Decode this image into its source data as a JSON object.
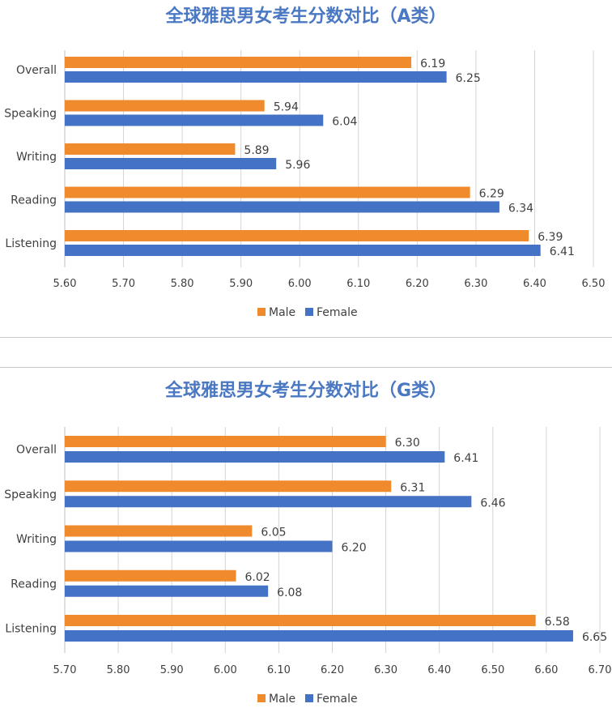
{
  "chart_data": [
    {
      "type": "bar",
      "orientation": "horizontal",
      "title": "全球雅思男女考生分数对比（A类）",
      "categories": [
        "Overall",
        "Speaking",
        "Writing",
        "Reading",
        "Listening"
      ],
      "series": [
        {
          "name": "Male",
          "color": "#ef8a2d",
          "values": [
            6.19,
            5.94,
            5.89,
            6.29,
            6.39
          ]
        },
        {
          "name": "Female",
          "color": "#4472c4",
          "values": [
            6.25,
            6.04,
            5.96,
            6.34,
            6.41
          ]
        }
      ],
      "x_ticks": [
        "5.60",
        "5.70",
        "5.80",
        "5.90",
        "6.00",
        "6.10",
        "6.20",
        "6.30",
        "6.40",
        "6.50"
      ],
      "xlim": [
        5.6,
        6.5
      ],
      "legend_position": "bottom",
      "grid": true
    },
    {
      "type": "bar",
      "orientation": "horizontal",
      "title": "全球雅思男女考生分数对比（G类）",
      "categories": [
        "Overall",
        "Speaking",
        "Writing",
        "Reading",
        "Listening"
      ],
      "series": [
        {
          "name": "Male",
          "color": "#ef8a2d",
          "values": [
            6.3,
            6.31,
            6.05,
            6.02,
            6.58
          ]
        },
        {
          "name": "Female",
          "color": "#4472c4",
          "values": [
            6.41,
            6.46,
            6.2,
            6.08,
            6.65
          ]
        }
      ],
      "x_ticks": [
        "5.70",
        "5.80",
        "5.90",
        "6.00",
        "6.10",
        "6.20",
        "6.30",
        "6.40",
        "6.50",
        "6.60",
        "6.70"
      ],
      "xlim": [
        5.7,
        6.7
      ],
      "legend_position": "bottom",
      "grid": true
    }
  ]
}
